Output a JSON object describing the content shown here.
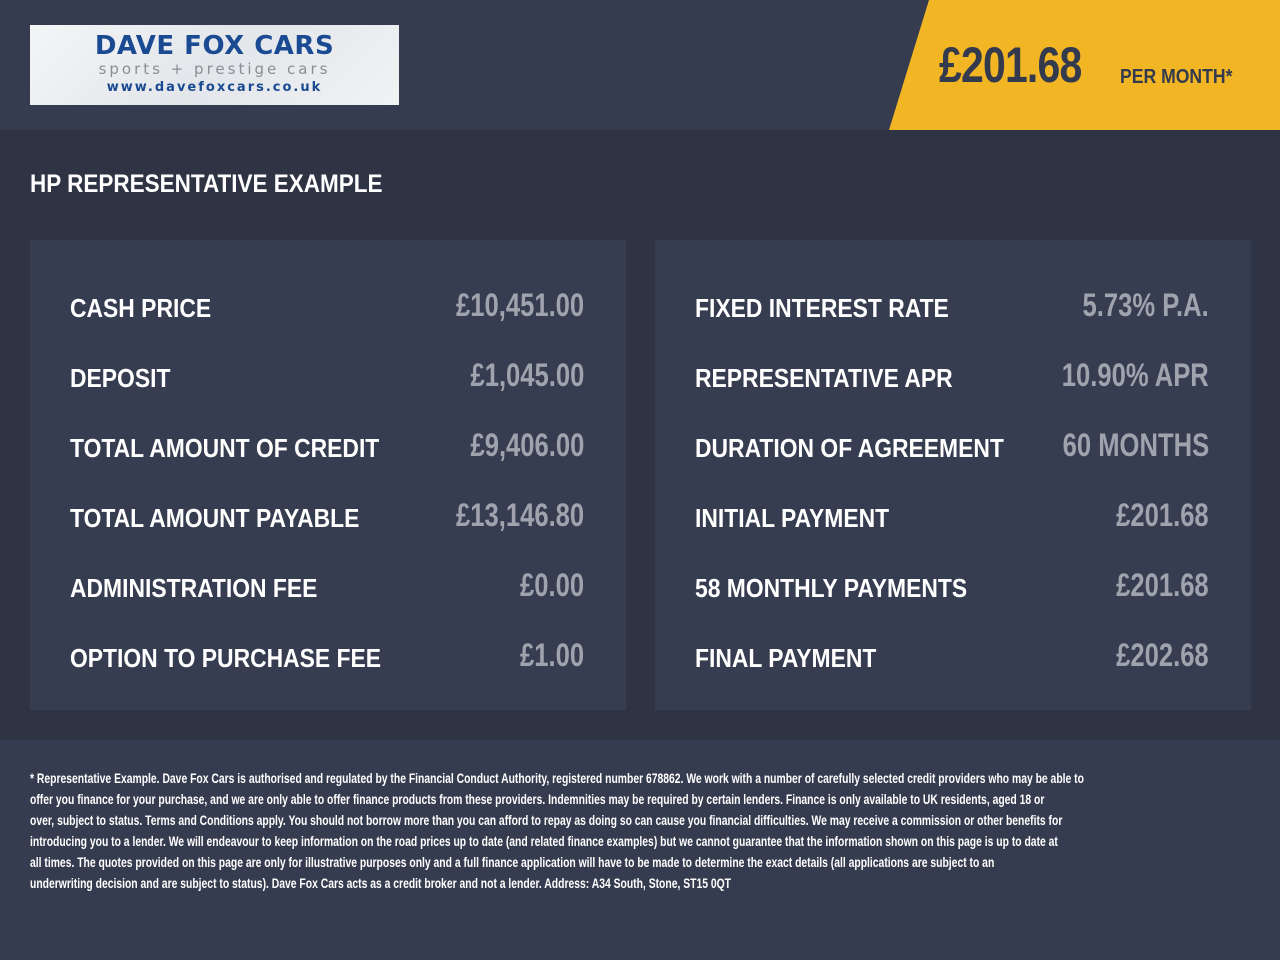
{
  "logo": {
    "name": "DAVE FOX CARS",
    "tagline": "sports + prestige cars",
    "url": "www.davefoxcars.co.uk"
  },
  "banner": {
    "amount": "£201.68",
    "per": "PER MONTH*",
    "color": "#f2b624"
  },
  "title": "HP REPRESENTATIVE EXAMPLE",
  "left": [
    {
      "label": "CASH PRICE",
      "value": "£10,451.00"
    },
    {
      "label": "DEPOSIT",
      "value": "£1,045.00"
    },
    {
      "label": "TOTAL AMOUNT OF CREDIT",
      "value": "£9,406.00"
    },
    {
      "label": "TOTAL AMOUNT PAYABLE",
      "value": "£13,146.80"
    },
    {
      "label": "ADMINISTRATION FEE",
      "value": "£0.00"
    },
    {
      "label": "OPTION TO PURCHASE FEE",
      "value": "£1.00"
    }
  ],
  "right": [
    {
      "label": "FIXED INTEREST RATE",
      "value": "5.73% P.A."
    },
    {
      "label": "REPRESENTATIVE APR",
      "value": "10.90% APR"
    },
    {
      "label": "DURATION OF AGREEMENT",
      "value": "60 MONTHS"
    },
    {
      "label": "INITIAL PAYMENT",
      "value": "£201.68"
    },
    {
      "label": "58 MONTHLY PAYMENTS",
      "value": "£201.68"
    },
    {
      "label": "FINAL PAYMENT",
      "value": "£202.68"
    }
  ],
  "disclaimer": [
    "* Representative Example. Dave Fox Cars is authorised and regulated by the Financial Conduct Authority, registered number 678862. We work with a number of carefully selected credit providers who may be able to",
    "offer you finance for your purchase, and we are only able to offer finance products from these providers. Indemnities may be required by certain lenders. Finance is only available to UK residents, aged 18 or",
    "over, subject to status. Terms and Conditions apply. You should not borrow more than you can afford to repay as doing so can cause you financial difficulties. We may receive a commission or other benefits for",
    "introducing you to a lender. We will endeavour to keep information on the road prices up to date (and related finance examples) but we cannot guarantee that the information shown on this page is up to date at",
    "all times. The quotes provided on this page are only for illustrative purposes only and a full finance application will have to be made to determine the exact details (all applications are subject to an",
    "underwriting decision and are subject to status). Dave Fox Cars acts as a credit broker and not a lender. Address: A34 South, Stone, ST15 0QT"
  ]
}
